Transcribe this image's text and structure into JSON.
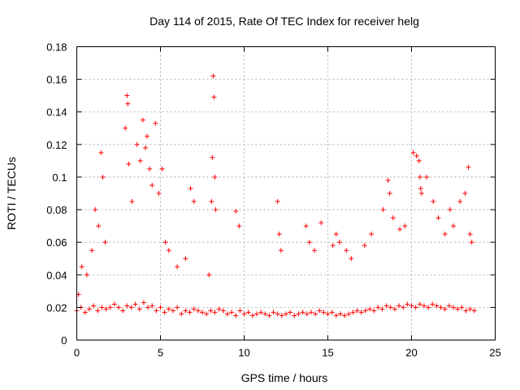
{
  "chart_data": {
    "type": "scatter",
    "title": "Day 114 of 2015, Rate Of TEC Index for receiver helg",
    "xlabel": "GPS time / hours",
    "ylabel": "ROTI / TECUs",
    "xlim": [
      0,
      25
    ],
    "ylim": [
      0,
      0.18
    ],
    "xticks": [
      "0",
      "5",
      "10",
      "15",
      "20",
      "25"
    ],
    "xtick_values": [
      0,
      5,
      10,
      15,
      20,
      25
    ],
    "yticks": [
      "0",
      "0.02",
      "0.04",
      "0.06",
      "0.08",
      "0.1",
      "0.12",
      "0.14",
      "0.16",
      "0.18"
    ],
    "ytick_values": [
      0,
      0.02,
      0.04,
      0.06,
      0.08,
      0.1,
      0.12,
      0.14,
      0.16,
      0.18
    ],
    "grid": true,
    "marker": "+",
    "color": "#ff0000",
    "series": [
      {
        "name": "ROTI",
        "x": [
          0.0,
          0.25,
          0.5,
          0.75,
          1.0,
          1.25,
          1.5,
          1.75,
          2.0,
          2.25,
          2.5,
          2.75,
          3.0,
          3.25,
          3.5,
          3.75,
          4.0,
          4.25,
          4.5,
          4.75,
          5.0,
          5.25,
          5.5,
          5.75,
          6.0,
          6.25,
          6.5,
          6.75,
          7.0,
          7.25,
          7.5,
          7.75,
          8.0,
          8.25,
          8.5,
          8.75,
          9.0,
          9.25,
          9.5,
          9.75,
          10.0,
          10.25,
          10.5,
          10.75,
          11.0,
          11.25,
          11.5,
          11.75,
          12.0,
          12.25,
          12.5,
          12.75,
          13.0,
          13.25,
          13.5,
          13.75,
          14.0,
          14.25,
          14.5,
          14.75,
          15.0,
          15.25,
          15.5,
          15.75,
          16.0,
          16.25,
          16.5,
          16.75,
          17.0,
          17.25,
          17.5,
          17.75,
          18.0,
          18.25,
          18.5,
          18.75,
          19.0,
          19.25,
          19.5,
          19.75,
          20.0,
          20.25,
          20.5,
          20.75,
          21.0,
          21.25,
          21.5,
          21.75,
          22.0,
          22.25,
          22.5,
          22.75,
          23.0,
          23.25,
          23.5,
          23.75,
          0.1,
          0.3,
          0.6,
          0.9,
          1.1,
          1.3,
          1.45,
          1.55,
          1.7,
          2.9,
          3.0,
          3.05,
          3.1,
          3.3,
          3.6,
          3.8,
          3.95,
          4.1,
          4.2,
          4.35,
          4.5,
          4.7,
          4.9,
          5.1,
          5.3,
          5.5,
          6.0,
          6.5,
          6.8,
          7.0,
          7.9,
          8.05,
          8.1,
          8.15,
          8.2,
          8.25,
          8.3,
          9.5,
          9.7,
          12.0,
          12.1,
          12.2,
          13.7,
          13.9,
          14.2,
          14.6,
          15.3,
          15.5,
          15.7,
          16.1,
          16.4,
          17.2,
          17.6,
          18.3,
          18.6,
          18.7,
          18.9,
          19.3,
          19.6,
          20.1,
          20.3,
          20.45,
          20.5,
          20.55,
          20.6,
          20.9,
          21.3,
          21.6,
          22.0,
          22.3,
          22.5,
          22.9,
          23.2,
          23.4,
          23.5,
          23.6
        ],
        "y": [
          0.018,
          0.02,
          0.017,
          0.019,
          0.021,
          0.018,
          0.02,
          0.019,
          0.02,
          0.022,
          0.02,
          0.018,
          0.021,
          0.02,
          0.022,
          0.019,
          0.023,
          0.02,
          0.021,
          0.018,
          0.02,
          0.017,
          0.019,
          0.018,
          0.02,
          0.016,
          0.018,
          0.017,
          0.019,
          0.018,
          0.017,
          0.016,
          0.018,
          0.017,
          0.019,
          0.018,
          0.016,
          0.017,
          0.015,
          0.018,
          0.016,
          0.017,
          0.015,
          0.016,
          0.017,
          0.016,
          0.015,
          0.017,
          0.016,
          0.015,
          0.016,
          0.017,
          0.015,
          0.016,
          0.017,
          0.016,
          0.017,
          0.016,
          0.018,
          0.017,
          0.016,
          0.017,
          0.015,
          0.016,
          0.015,
          0.016,
          0.017,
          0.018,
          0.017,
          0.018,
          0.019,
          0.018,
          0.02,
          0.019,
          0.021,
          0.02,
          0.019,
          0.021,
          0.02,
          0.022,
          0.021,
          0.02,
          0.022,
          0.021,
          0.02,
          0.022,
          0.021,
          0.02,
          0.019,
          0.021,
          0.02,
          0.019,
          0.02,
          0.018,
          0.019,
          0.018,
          0.028,
          0.045,
          0.04,
          0.055,
          0.08,
          0.07,
          0.115,
          0.1,
          0.06,
          0.13,
          0.15,
          0.145,
          0.108,
          0.085,
          0.12,
          0.11,
          0.135,
          0.118,
          0.125,
          0.105,
          0.095,
          0.133,
          0.09,
          0.105,
          0.06,
          0.055,
          0.045,
          0.05,
          0.093,
          0.085,
          0.04,
          0.085,
          0.112,
          0.162,
          0.149,
          0.1,
          0.08,
          0.079,
          0.07,
          0.085,
          0.065,
          0.055,
          0.07,
          0.06,
          0.055,
          0.072,
          0.058,
          0.065,
          0.06,
          0.055,
          0.05,
          0.058,
          0.065,
          0.08,
          0.098,
          0.09,
          0.075,
          0.068,
          0.07,
          0.115,
          0.113,
          0.11,
          0.1,
          0.093,
          0.09,
          0.1,
          0.085,
          0.075,
          0.065,
          0.08,
          0.07,
          0.085,
          0.09,
          0.106,
          0.065,
          0.06
        ]
      }
    ]
  }
}
